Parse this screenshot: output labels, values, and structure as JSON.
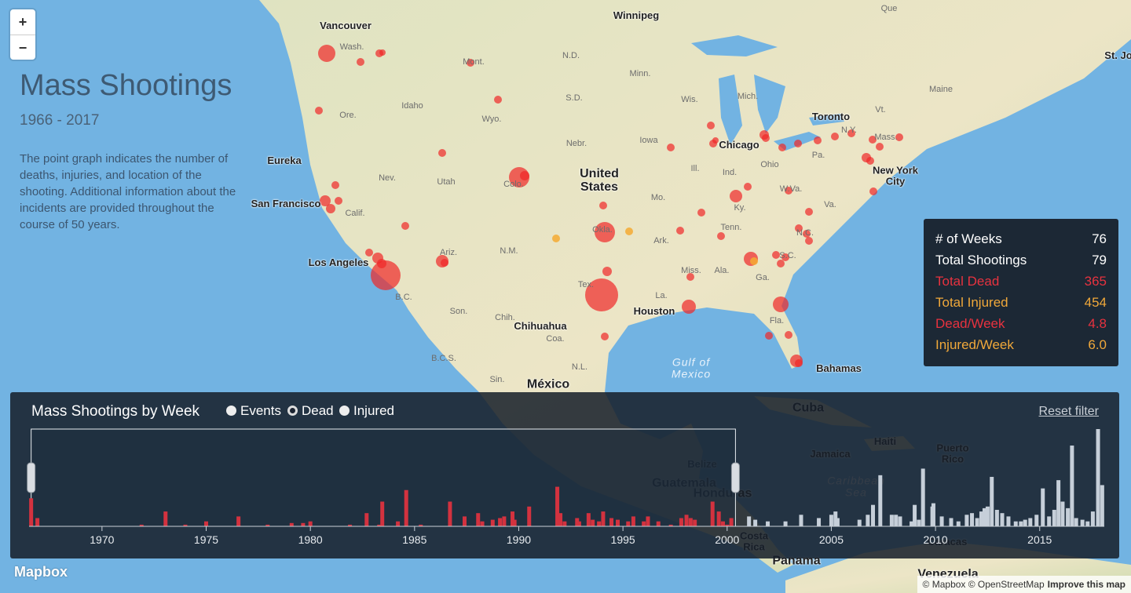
{
  "map": {
    "zoom_in": "+",
    "zoom_out": "−",
    "labels": [
      "Vancouver",
      "Winnipeg",
      "Que",
      "St. Jo",
      "Wash.",
      "Mont.",
      "N.D.",
      "Minn.",
      "Ore.",
      "Idaho",
      "S.D.",
      "Wyo.",
      "Wis.",
      "Mich.",
      "Maine",
      "Vt.",
      "Toronto",
      "N.Y.",
      "Mass.",
      "Eureka",
      "Nebr.",
      "Iowa",
      "United States",
      "Chicago",
      "Ohio",
      "Pa.",
      "Ind.",
      "Ill.",
      "Nev.",
      "Utah",
      "Colo.",
      "New York City",
      "San Francisco",
      "Calif.",
      "W.Va.",
      "Va.",
      "Mo.",
      "Ky.",
      "Okla.",
      "Tenn.",
      "N.C.",
      "Ark.",
      "Ariz.",
      "N.M.",
      "Los Angeles",
      "S.C.",
      "Miss.",
      "Ala.",
      "Ga.",
      "Tex.",
      "La.",
      "Houston",
      "B.C.",
      "Son.",
      "Fla.",
      "Chih.",
      "Chihuahua",
      "Coa.",
      "Gulf of Mexico",
      "Bahamas",
      "B.C.S.",
      "Sin.",
      "N.L.",
      "México",
      "Cuba",
      "Jamaica",
      "Haiti",
      "Puerto Rico",
      "Belize",
      "Guatemala",
      "Honduras",
      "Caribbean Sea",
      "Caracas",
      "Panama",
      "Costa Rica",
      "Venezuela"
    ]
  },
  "header": {
    "title": "Mass Shootings",
    "subtitle": "1966 - 2017",
    "description": "The point graph indicates the number of deaths, injuries, and location of the shooting. Additional information about the incidents are provided throughout the course of 50 years."
  },
  "stats": {
    "rows": [
      {
        "label": "# of Weeks",
        "value": "76",
        "color": "#ffffff"
      },
      {
        "label": "Total Shootings",
        "value": "79",
        "color": "#ffffff"
      },
      {
        "label": "Total Dead",
        "value": "365",
        "color": "#e8323f"
      },
      {
        "label": "Total Injured",
        "value": "454",
        "color": "#f0a83a"
      },
      {
        "label": "Dead/Week",
        "value": "4.8",
        "color": "#e8323f"
      },
      {
        "label": "Injured/Week",
        "value": "6.0",
        "color": "#f0a83a"
      }
    ]
  },
  "chart_data": {
    "type": "bar",
    "title": "Mass Shootings by Week",
    "options": [
      "Events",
      "Dead",
      "Injured"
    ],
    "selected": "Dead",
    "reset": "Reset filter",
    "x": [
      1966.6,
      1966.9,
      1971.9,
      1973.05,
      1974.0,
      1975.0,
      1976.55,
      1977.95,
      1979.1,
      1979.65,
      1980.0,
      1981.9,
      1982.7,
      1983.3,
      1983.45,
      1984.2,
      1984.6,
      1985.3,
      1986.7,
      1987.4,
      1988.05,
      1988.25,
      1988.75,
      1989.1,
      1989.3,
      1989.7,
      1989.8,
      1990.5,
      1991.85,
      1992.0,
      1992.2,
      1992.8,
      1992.9,
      1993.35,
      1993.55,
      1993.85,
      1994.05,
      1994.45,
      1994.75,
      1995.25,
      1995.5,
      1996.0,
      1996.2,
      1996.7,
      1997.3,
      1997.8,
      1998.05,
      1998.25,
      1998.45,
      1999.3,
      1999.6,
      1999.8,
      2000.0,
      2000.2,
      2001.05,
      2001.35,
      2001.95,
      2002.8,
      2003.55,
      2004.4,
      2005.0,
      2005.2,
      2005.3,
      2006.35,
      2006.75,
      2007.0,
      2007.35,
      2007.9,
      2008.1,
      2008.3,
      2008.85,
      2009.0,
      2009.2,
      2009.4,
      2009.85,
      2009.9,
      2010.3,
      2010.75,
      2011.1,
      2011.5,
      2011.75,
      2012.0,
      2012.2,
      2012.35,
      2012.5,
      2012.7,
      2012.95,
      2013.2,
      2013.5,
      2013.85,
      2014.1,
      2014.3,
      2014.55,
      2014.85,
      2015.15,
      2015.45,
      2015.7,
      2015.9,
      2016.1,
      2016.35,
      2016.55,
      2016.75,
      2017.05,
      2017.3,
      2017.55,
      2017.8,
      2018.0
    ],
    "values": [
      17,
      5,
      1,
      9,
      1,
      3,
      6,
      1,
      2,
      2,
      3,
      1,
      8,
      1,
      15,
      3,
      22,
      1,
      15,
      6,
      8,
      3,
      4,
      5,
      6,
      9,
      4,
      12,
      24,
      8,
      3,
      5,
      3,
      8,
      4,
      3,
      9,
      5,
      4,
      3,
      6,
      3,
      6,
      3,
      1,
      5,
      7,
      5,
      4,
      15,
      9,
      3,
      1,
      5,
      6,
      4,
      3,
      3,
      7,
      5,
      7,
      9,
      5,
      4,
      7,
      13,
      31,
      7,
      7,
      6,
      3,
      13,
      4,
      35,
      12,
      14,
      6,
      5,
      3,
      7,
      8,
      5,
      9,
      11,
      12,
      30,
      10,
      8,
      6,
      3,
      3,
      4,
      5,
      7,
      23,
      6,
      10,
      28,
      15,
      11,
      49,
      5,
      4,
      3,
      9,
      59,
      25
    ],
    "color": "#d3323f",
    "inactive_color": "#c6cfd9",
    "brush": [
      1966.6,
      2000.4
    ],
    "xlim": [
      1966.5,
      2018.1
    ],
    "xticks": [
      1970,
      1975,
      1980,
      1985,
      1990,
      1995,
      2000,
      2005,
      2010,
      2015
    ],
    "ylim": [
      0,
      59
    ]
  },
  "footer": {
    "logo": "Mapbox",
    "attribution": "© Mapbox © OpenStreetMap",
    "improve": "Improve this map"
  }
}
